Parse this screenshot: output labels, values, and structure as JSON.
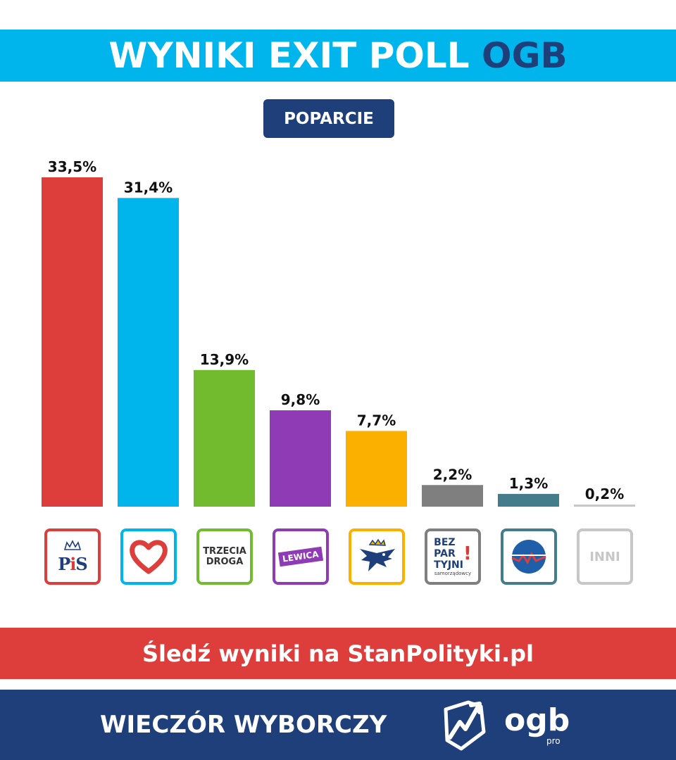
{
  "header": {
    "title_main": "WYNIKI EXIT POLL",
    "title_accent": "OGB",
    "subtitle": "POPARCIE"
  },
  "colors": {
    "header_band": "#00b5ec",
    "accent_dark": "#1f3f7a",
    "cta_band": "#dd3e3c"
  },
  "chart_data": {
    "type": "bar",
    "title": "WYNIKI EXIT POLL OGB",
    "subtitle": "POPARCIE",
    "categories": [
      "PiS",
      "KO",
      "Trzecia Droga",
      "Lewica",
      "Konfederacja",
      "Bezpartyjni Samorządowcy",
      "PJJ",
      "INNI"
    ],
    "values": [
      33.5,
      31.4,
      13.9,
      9.8,
      7.7,
      2.2,
      1.3,
      0.2
    ],
    "value_labels": [
      "33,5%",
      "31,4%",
      "13,9%",
      "9,8%",
      "7,7%",
      "2,2%",
      "1,3%",
      "0,2%"
    ],
    "colors": [
      "#dd3e3c",
      "#00b5ec",
      "#72bb2f",
      "#8e3bb5",
      "#fbb000",
      "#7f7f7f",
      "#457c8c",
      "#c7c7c7"
    ],
    "ylim": [
      0,
      33.5
    ],
    "grid": false,
    "legend": "none"
  },
  "logos": [
    {
      "name": "pis-logo-icon",
      "text_a": "P",
      "text_b": "i",
      "text_c": "S",
      "border": "#dd3e3c"
    },
    {
      "name": "heart-logo-icon",
      "border": "#00b5ec"
    },
    {
      "name": "trzecia-droga-logo-icon",
      "line1": "TRZECIA",
      "line2": "DROGA",
      "border": "#72bb2f"
    },
    {
      "name": "lewica-logo-icon",
      "text": "LEWICA",
      "border": "#8e3bb5"
    },
    {
      "name": "eagle-crown-logo-icon",
      "border": "#fbb000"
    },
    {
      "name": "bezpartyjni-logo-icon",
      "line1": "BEZ",
      "line2": "PAR",
      "line3": "TYJNI",
      "exclaim": "!",
      "sub": "samorządowcy",
      "border": "#7f7f7f"
    },
    {
      "name": "pjj-logo-icon",
      "border": "#457c8c"
    },
    {
      "name": "inni-logo-icon",
      "text": "INNI",
      "border": "#c7c7c7"
    }
  ],
  "cta": {
    "text": "Śledź wyniki na StanPolityki.pl"
  },
  "footer": {
    "text": "WIECZÓR WYBORCZY",
    "brand": "ogb",
    "brand_sub": "pro"
  }
}
